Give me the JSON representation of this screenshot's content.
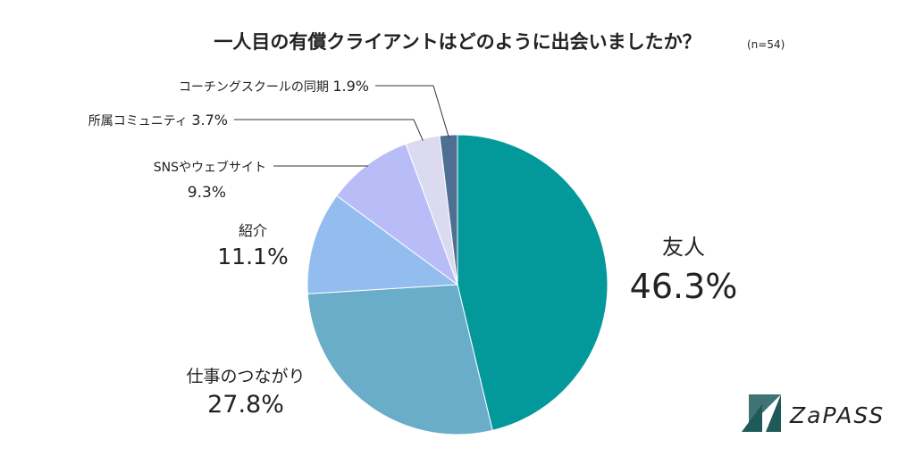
{
  "title": "一人目の有償クライアントはどのように出会いましたか？",
  "sample_note": "(n=54)",
  "brand": {
    "name": "ZaPASS",
    "color": "#1f5a5a"
  },
  "chart_data": {
    "type": "pie",
    "slices": [
      {
        "label": "友人",
        "value": 46.3,
        "value_label": "46.3%",
        "color": "#03999a"
      },
      {
        "label": "仕事のつながり",
        "value": 27.8,
        "value_label": "27.8%",
        "color": "#6aadc9"
      },
      {
        "label": "紹介",
        "value": 11.1,
        "value_label": "11.1%",
        "color": "#93bdee"
      },
      {
        "label": "SNSやウェブサイト",
        "value": 9.3,
        "value_label": "9.3%",
        "color": "#b8bdf8"
      },
      {
        "label": "所属コミュニティ",
        "value": 3.7,
        "value_label": "3.7%",
        "color": "#dcdaf0"
      },
      {
        "label": "コーチングスクールの同期",
        "value": 1.9,
        "value_label": "1.9%",
        "color": "#4e6f91"
      }
    ]
  }
}
